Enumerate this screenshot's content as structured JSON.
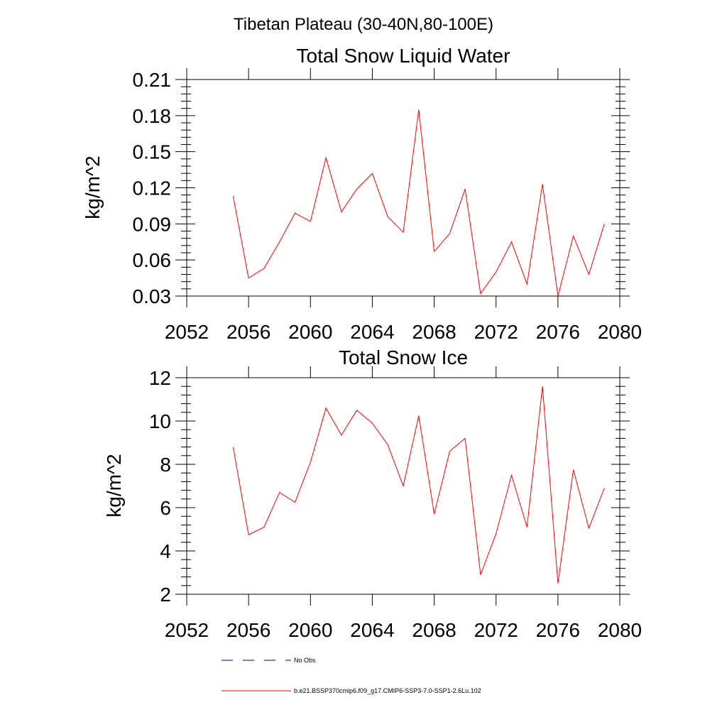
{
  "figure_title": "Tibetan Plateau (30-40N,80-100E)",
  "legend": {
    "entries": [
      {
        "label": "No Obs",
        "style": "dashed",
        "color": "#000080"
      },
      {
        "label": "b.e21.BSSP370cmip6.f09_g17.CMIP6-SSP3-7.0-SSP1-2.6Lu.102",
        "style": "solid",
        "color": "#ff0000"
      }
    ]
  },
  "chart_data": [
    {
      "type": "line",
      "title": "Total Snow Liquid Water",
      "xlabel": "",
      "ylabel": "kg/m^2",
      "xlim": [
        2052,
        2080
      ],
      "ylim": [
        0.03,
        0.21
      ],
      "xticks": [
        2052,
        2056,
        2060,
        2064,
        2068,
        2072,
        2076,
        2080
      ],
      "yticks": [
        0.03,
        0.06,
        0.09,
        0.12,
        0.15,
        0.18,
        0.21
      ],
      "ytick_labels": [
        "0.03",
        "0.06",
        "0.09",
        "0.12",
        "0.15",
        "0.18",
        "0.21"
      ],
      "grid": false,
      "series": [
        {
          "color": "#ff0000",
          "x": [
            2055,
            2056,
            2057,
            2058,
            2059,
            2060,
            2061,
            2062,
            2063,
            2064,
            2065,
            2066,
            2067,
            2068,
            2069,
            2070,
            2071,
            2072,
            2073,
            2074,
            2075,
            2076,
            2077,
            2078,
            2079
          ],
          "y": [
            0.113,
            0.045,
            0.053,
            0.075,
            0.099,
            0.092,
            0.145,
            0.1,
            0.119,
            0.132,
            0.096,
            0.083,
            0.185,
            0.067,
            0.082,
            0.119,
            0.032,
            0.05,
            0.075,
            0.04,
            0.123,
            0.03,
            0.08,
            0.048,
            0.09
          ]
        }
      ]
    },
    {
      "type": "line",
      "title": "Total Snow Ice",
      "xlabel": "",
      "ylabel": "kg/m^2",
      "xlim": [
        2052,
        2080
      ],
      "ylim": [
        2,
        12
      ],
      "xticks": [
        2052,
        2056,
        2060,
        2064,
        2068,
        2072,
        2076,
        2080
      ],
      "yticks": [
        2,
        4,
        6,
        8,
        10,
        12
      ],
      "ytick_labels": [
        "2",
        "4",
        "6",
        "8",
        "10",
        "12"
      ],
      "grid": false,
      "series": [
        {
          "color": "#ff0000",
          "x": [
            2055,
            2056,
            2057,
            2058,
            2059,
            2060,
            2061,
            2062,
            2063,
            2064,
            2065,
            2066,
            2067,
            2068,
            2069,
            2070,
            2071,
            2072,
            2073,
            2074,
            2075,
            2076,
            2077,
            2078,
            2079
          ],
          "y": [
            8.8,
            4.75,
            5.1,
            6.7,
            6.25,
            8.1,
            10.6,
            9.35,
            10.5,
            9.9,
            8.9,
            7.0,
            10.25,
            5.7,
            8.6,
            9.2,
            2.9,
            4.8,
            7.5,
            5.1,
            11.6,
            2.5,
            7.75,
            5.05,
            6.9
          ]
        }
      ]
    }
  ]
}
